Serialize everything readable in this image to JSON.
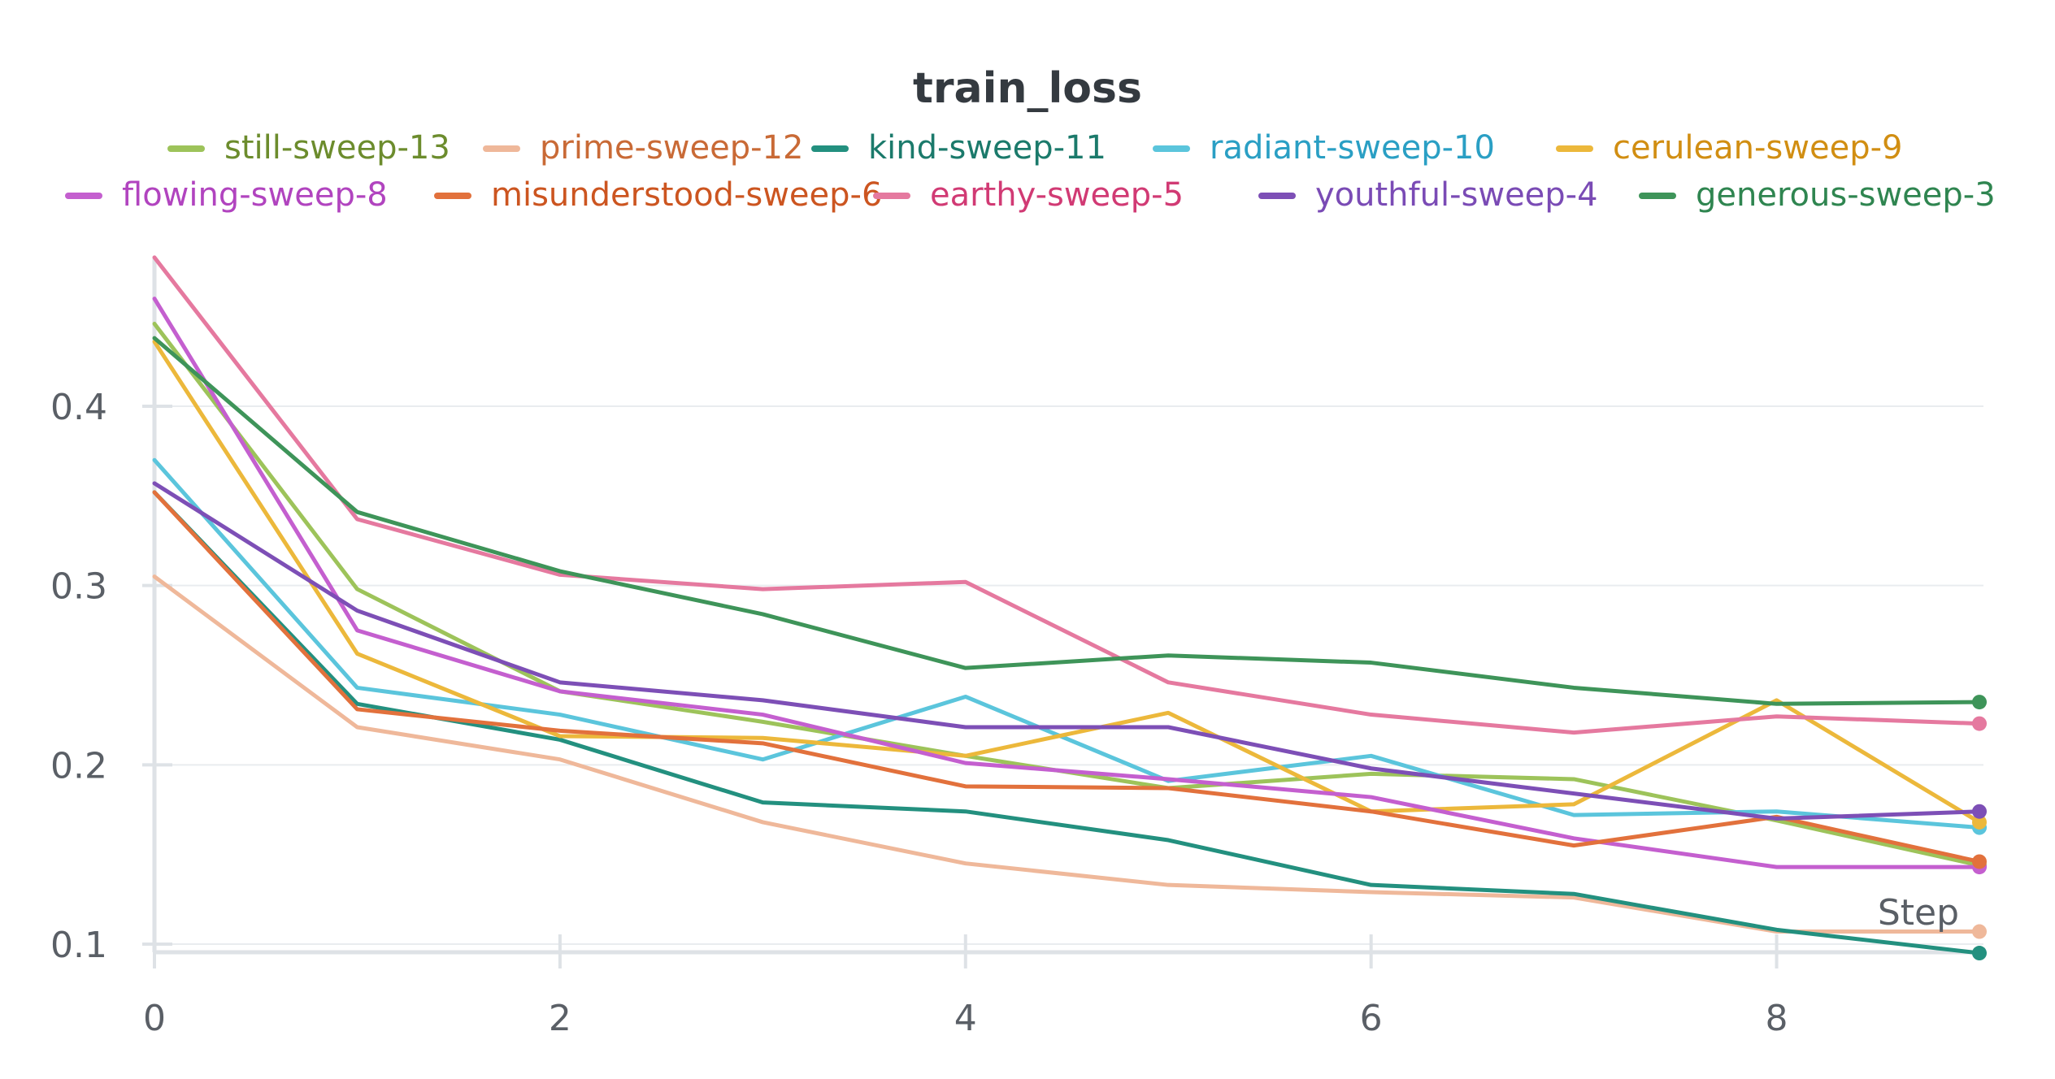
{
  "chart_data": {
    "type": "line",
    "title": "train_loss",
    "xlabel": "Step",
    "ylabel": "",
    "xlim": [
      0,
      9
    ],
    "ylim": [
      0.095,
      0.49
    ],
    "x_ticks": [
      0,
      2,
      4,
      6,
      8
    ],
    "y_ticks": [
      0.1,
      0.2,
      0.3,
      0.4
    ],
    "x_tick_labels": [
      "0",
      "2",
      "4",
      "6",
      "8"
    ],
    "y_tick_labels": [
      "0.1",
      "0.2",
      "0.3",
      "0.4"
    ],
    "grid": true,
    "legend_position": "top",
    "x": [
      0,
      1,
      2,
      3,
      4,
      5,
      6,
      7,
      8,
      9
    ],
    "series": [
      {
        "name": "still-sweep-13",
        "color": "#9dc35a",
        "text_color": "#6c8c2d",
        "values": [
          0.446,
          0.298,
          0.241,
          0.224,
          0.205,
          0.187,
          0.195,
          0.192,
          0.169,
          0.144
        ]
      },
      {
        "name": "prime-sweep-12",
        "color": "#efb89a",
        "text_color": "#c96a36",
        "values": [
          0.305,
          0.221,
          0.203,
          0.168,
          0.145,
          0.133,
          0.129,
          0.126,
          0.107,
          0.107
        ]
      },
      {
        "name": "kind-sweep-11",
        "color": "#23907f",
        "text_color": "#1b7a6b",
        "values": [
          0.352,
          0.234,
          0.214,
          0.179,
          0.174,
          0.158,
          0.133,
          0.128,
          0.108,
          0.095
        ]
      },
      {
        "name": "radiant-sweep-10",
        "color": "#5bc5dc",
        "text_color": "#2a9fc4",
        "values": [
          0.37,
          0.243,
          0.228,
          0.203,
          0.238,
          0.191,
          0.205,
          0.172,
          0.174,
          0.165
        ]
      },
      {
        "name": "cerulean-sweep-9",
        "color": "#ecb83b",
        "text_color": "#d18e12",
        "values": [
          0.436,
          0.262,
          0.216,
          0.215,
          0.205,
          0.229,
          0.174,
          0.178,
          0.236,
          0.168
        ]
      },
      {
        "name": "flowing-sweep-8",
        "color": "#c45fcf",
        "text_color": "#b144bf",
        "values": [
          0.46,
          0.275,
          0.241,
          0.228,
          0.201,
          0.192,
          0.182,
          0.159,
          0.143,
          0.143
        ]
      },
      {
        "name": "misunderstood-sweep-6",
        "color": "#e2713c",
        "text_color": "#cc5520",
        "values": [
          0.352,
          0.231,
          0.219,
          0.212,
          0.188,
          0.187,
          0.174,
          0.155,
          0.171,
          0.146
        ]
      },
      {
        "name": "earthy-sweep-5",
        "color": "#e5799f",
        "text_color": "#d13a74",
        "values": [
          0.483,
          0.337,
          0.306,
          0.298,
          0.302,
          0.246,
          0.228,
          0.218,
          0.227,
          0.223
        ]
      },
      {
        "name": "youthful-sweep-4",
        "color": "#7d4fb6",
        "text_color": "#7a4bb5",
        "values": [
          0.357,
          0.286,
          0.246,
          0.236,
          0.221,
          0.221,
          0.198,
          0.184,
          0.17,
          0.174
        ]
      },
      {
        "name": "generous-sweep-3",
        "color": "#3e9459",
        "text_color": "#2f8550",
        "values": [
          0.438,
          0.341,
          0.308,
          0.284,
          0.254,
          0.261,
          0.257,
          0.243,
          0.234,
          0.235
        ]
      }
    ]
  }
}
